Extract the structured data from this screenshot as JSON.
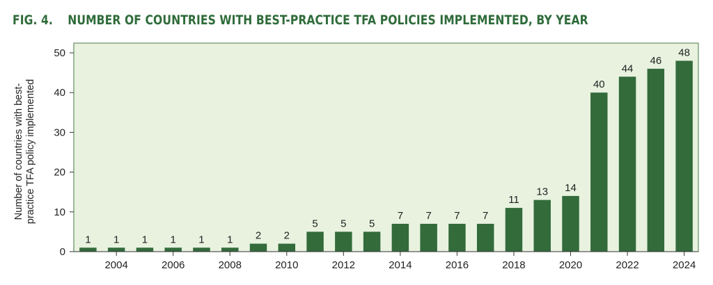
{
  "header": {
    "fig_number": "FIG. 4.",
    "title": "NUMBER OF COUNTRIES WITH BEST-PRACTICE TFA POLICIES IMPLEMENTED, BY YEAR"
  },
  "colors": {
    "title": "#2f6b3a",
    "bar": "#336b3b",
    "plot_background": "#e8f2df",
    "frame": "#4a7a4a"
  },
  "chart_data": {
    "type": "bar",
    "title": "NUMBER OF COUNTRIES WITH BEST-PRACTICE TFA POLICIES IMPLEMENTED, BY YEAR",
    "xlabel": "",
    "ylabel_lines": [
      "Number of countries with best-",
      "practice TFA policy implemented"
    ],
    "categories": [
      2003,
      2004,
      2005,
      2006,
      2007,
      2008,
      2009,
      2010,
      2011,
      2012,
      2013,
      2014,
      2015,
      2016,
      2017,
      2018,
      2019,
      2020,
      2021,
      2022,
      2023,
      2024
    ],
    "values": [
      1,
      1,
      1,
      1,
      1,
      1,
      2,
      2,
      5,
      5,
      5,
      7,
      7,
      7,
      7,
      11,
      13,
      14,
      40,
      44,
      46,
      48
    ],
    "x_tick_labels": [
      "2004",
      "2006",
      "2008",
      "2010",
      "2012",
      "2014",
      "2016",
      "2018",
      "2020",
      "2022",
      "2024"
    ],
    "y_ticks": [
      0,
      10,
      20,
      30,
      40,
      50
    ],
    "ylim": [
      0,
      50
    ],
    "data_labels": true,
    "grid": false,
    "legend": "none"
  }
}
